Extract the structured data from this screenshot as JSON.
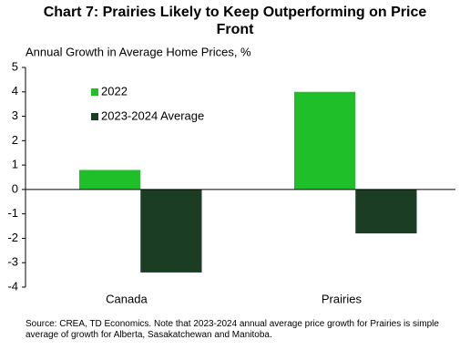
{
  "chart_data": {
    "type": "bar",
    "title": "Chart 7: Prairies Likely to Keep Outperforming on Price Front",
    "y_label": "Annual Growth in Average Home Prices, %",
    "categories": [
      "Canada",
      "Prairies"
    ],
    "series": [
      {
        "name": "2022",
        "color": "#1fbf2a",
        "values": [
          0.8,
          4.0
        ]
      },
      {
        "name": "2023-2024 Average",
        "color": "#1a3d24",
        "values": [
          -3.4,
          -1.8
        ]
      }
    ],
    "ylim": [
      -4,
      5
    ],
    "yticks": [
      -4,
      -3,
      -2,
      -1,
      0,
      1,
      2,
      3,
      4,
      5
    ],
    "legend": "upper-left",
    "footnote": "Source: CREA, TD Economics. Note that 2023-2024 annual average price growth for Prairies is simple average of growth for Alberta, Sasakatchewan and Manitoba."
  }
}
